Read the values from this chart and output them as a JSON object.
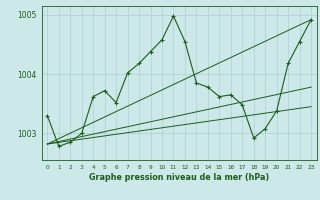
{
  "title": "Graphe pression niveau de la mer (hPa)",
  "bg_color": "#cce8e8",
  "grid_color": "#aad0d0",
  "line_color": "#1a5e1a",
  "xlim": [
    -0.5,
    23.5
  ],
  "ylim": [
    1002.55,
    1005.15
  ],
  "yticks": [
    1003,
    1004,
    1005
  ],
  "xticks": [
    0,
    1,
    2,
    3,
    4,
    5,
    6,
    7,
    8,
    9,
    10,
    11,
    12,
    13,
    14,
    15,
    16,
    17,
    18,
    19,
    20,
    21,
    22,
    23
  ],
  "main_x": [
    0,
    1,
    2,
    3,
    4,
    5,
    6,
    7,
    8,
    9,
    10,
    11,
    12,
    13,
    14,
    15,
    16,
    17,
    18,
    19,
    20,
    21,
    22,
    23
  ],
  "main_y": [
    1003.3,
    1002.78,
    1002.85,
    1003.0,
    1003.62,
    1003.72,
    1003.52,
    1004.02,
    1004.18,
    1004.38,
    1004.58,
    1004.98,
    1004.55,
    1003.85,
    1003.78,
    1003.62,
    1003.65,
    1003.48,
    1002.92,
    1003.08,
    1003.38,
    1004.18,
    1004.55,
    1004.92
  ],
  "trend1_x": [
    0,
    23
  ],
  "trend1_y": [
    1002.82,
    1004.92
  ],
  "trend2_x": [
    0,
    23
  ],
  "trend2_y": [
    1002.82,
    1003.78
  ],
  "trend3_x": [
    0,
    23
  ],
  "trend3_y": [
    1002.82,
    1003.45
  ]
}
